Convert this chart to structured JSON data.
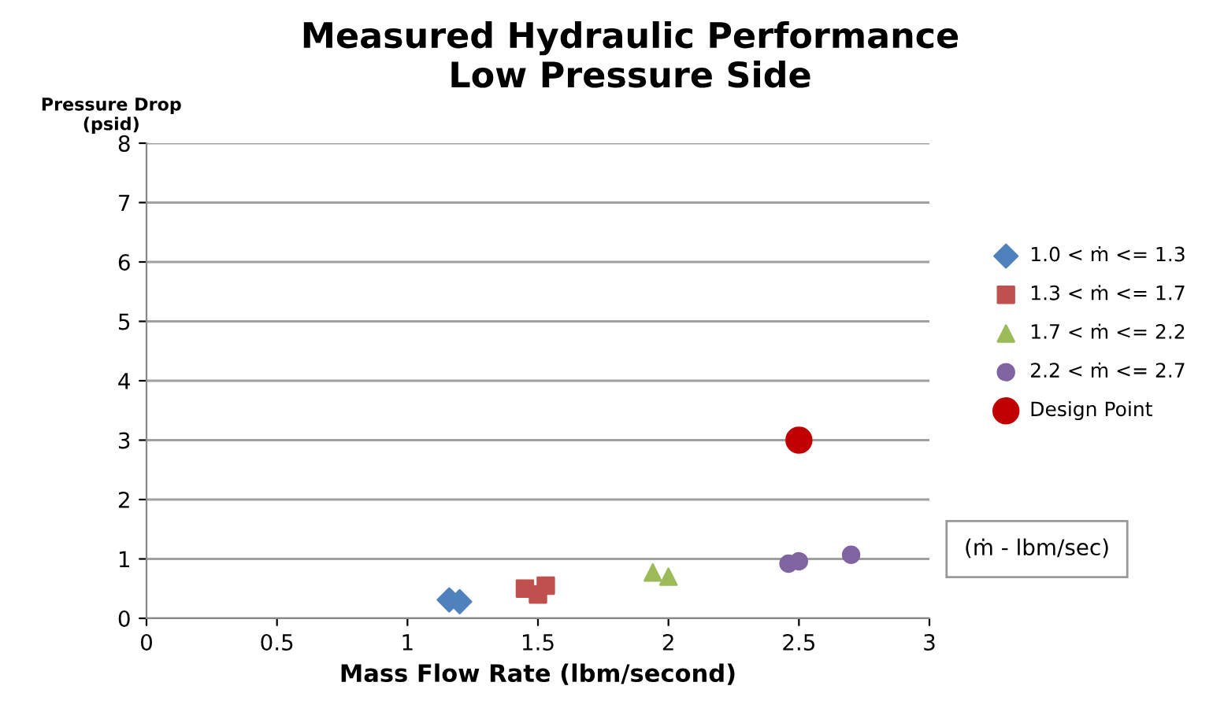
{
  "chart_data": {
    "type": "scatter",
    "title": "Measured Hydraulic Performance\nLow Pressure Side",
    "xlabel": "Mass Flow Rate (lbm/second)",
    "ylabel": "Pressure Drop\n(psid)",
    "xlim": [
      0,
      3
    ],
    "xticks": [
      0,
      0.5,
      1,
      1.5,
      2,
      2.5,
      3
    ],
    "ylim": [
      0,
      8
    ],
    "yticks": [
      0,
      1,
      2,
      3,
      4,
      5,
      6,
      7,
      8
    ],
    "grid": "y",
    "legend": "right",
    "series": [
      {
        "name": "1.0 < ṁ <= 1.3",
        "color": "#4f81bd",
        "marker": "diamond",
        "x": [
          1.16,
          1.2
        ],
        "values": [
          0.31,
          0.28
        ]
      },
      {
        "name": "1.3 < ṁ <= 1.7",
        "color": "#c0504d",
        "marker": "square",
        "x": [
          1.45,
          1.5,
          1.53
        ],
        "values": [
          0.5,
          0.4,
          0.55
        ]
      },
      {
        "name": "1.7 < ṁ <= 2.2",
        "color": "#9bbb59",
        "marker": "triangle",
        "x": [
          1.94,
          2.0
        ],
        "values": [
          0.77,
          0.7
        ]
      },
      {
        "name": "2.2 < ṁ <= 2.7",
        "color": "#8064a2",
        "marker": "circle",
        "x": [
          2.46,
          2.5,
          2.7
        ],
        "values": [
          0.92,
          0.96,
          1.07
        ]
      },
      {
        "name": "Design Point",
        "color": "#c00000",
        "marker": "circle",
        "x": [
          2.5
        ],
        "values": [
          3.0
        ]
      }
    ],
    "annotations": [
      "(ṁ - lbm/sec)"
    ]
  }
}
